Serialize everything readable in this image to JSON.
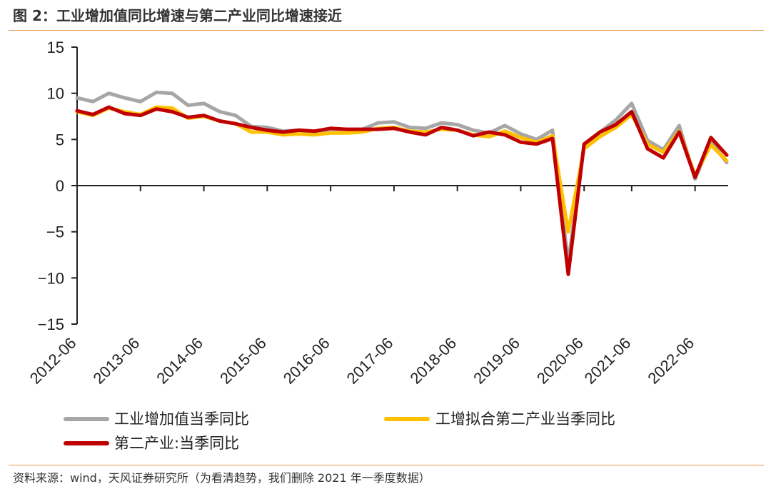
{
  "header": {
    "title": "图 2：工业增加值同比增速与第二产业同比增速接近"
  },
  "footer": {
    "source": "资料来源：wind，天风证券研究所（为看清趋势，我们删除 2021 年一季度数据）"
  },
  "colors": {
    "gray": "#a6a6a6",
    "yellow": "#ffc000",
    "red": "#c00000",
    "rule": "#e69a52"
  },
  "chart_data": {
    "type": "line",
    "title": "工业增加值同比增速与第二产业同比增速接近",
    "xlabel": "",
    "ylabel": "",
    "ylim": [
      -15,
      15
    ],
    "yticks": [
      15,
      10,
      5,
      0,
      -5,
      -10,
      -15
    ],
    "ytick_labels": [
      "15",
      "10",
      "5",
      "0",
      "−5",
      "−10",
      "−15"
    ],
    "x": [
      "2012-06",
      "2012-09",
      "2012-12",
      "2013-03",
      "2013-06",
      "2013-09",
      "2013-12",
      "2014-03",
      "2014-06",
      "2014-09",
      "2014-12",
      "2015-03",
      "2015-06",
      "2015-09",
      "2015-12",
      "2016-03",
      "2016-06",
      "2016-09",
      "2016-12",
      "2017-03",
      "2017-06",
      "2017-09",
      "2017-12",
      "2018-03",
      "2018-06",
      "2018-09",
      "2018-12",
      "2019-03",
      "2019-06",
      "2019-09",
      "2019-12",
      "2020-03",
      "2020-06",
      "2020-09",
      "2020-12",
      "2021-06",
      "2021-09",
      "2021-12",
      "2022-03",
      "2022-06",
      "2022-09",
      "2022-12"
    ],
    "xtick_labels": [
      "2012-06",
      "2013-06",
      "2014-06",
      "2015-06",
      "2016-06",
      "2017-06",
      "2018-06",
      "2019-06",
      "2020-06",
      "2021-06",
      "2022-06"
    ],
    "series": [
      {
        "name": "工业增加值当季同比",
        "values": [
          9.5,
          9.1,
          10.0,
          9.5,
          9.1,
          10.1,
          10.0,
          8.7,
          8.9,
          8.0,
          7.6,
          6.4,
          6.3,
          5.9,
          6.0,
          5.8,
          6.1,
          6.1,
          6.1,
          6.8,
          6.9,
          6.3,
          6.2,
          6.8,
          6.6,
          6.0,
          5.7,
          6.5,
          5.6,
          5.0,
          6.0,
          -8.4,
          4.4,
          5.8,
          7.1,
          8.9,
          4.9,
          3.9,
          6.5,
          0.7,
          4.8,
          2.5
        ]
      },
      {
        "name": "工增拟合第二产业当季同比",
        "values": [
          8.0,
          7.6,
          8.4,
          8.0,
          7.7,
          8.5,
          8.4,
          7.3,
          7.5,
          7.0,
          6.7,
          5.8,
          5.8,
          5.5,
          5.6,
          5.5,
          5.7,
          5.7,
          5.8,
          6.2,
          6.3,
          5.9,
          5.8,
          6.1,
          6.0,
          5.5,
          5.3,
          5.9,
          5.2,
          4.7,
          5.4,
          -5.0,
          4.0,
          5.3,
          6.3,
          7.7,
          4.5,
          3.6,
          5.9,
          1.1,
          4.4,
          2.7
        ]
      },
      {
        "name": "第二产业:当季同比",
        "values": [
          8.1,
          7.7,
          8.5,
          7.8,
          7.6,
          8.3,
          8.0,
          7.4,
          7.6,
          7.0,
          6.7,
          6.3,
          6.0,
          5.8,
          6.0,
          5.9,
          6.2,
          6.1,
          6.1,
          6.1,
          6.2,
          5.8,
          5.5,
          6.3,
          6.0,
          5.4,
          5.8,
          5.5,
          4.7,
          4.5,
          5.1,
          -9.6,
          4.5,
          5.8,
          6.6,
          8.0,
          4.0,
          3.0,
          5.8,
          0.9,
          5.2,
          3.3
        ]
      }
    ],
    "grid": false,
    "legend": "bottom"
  }
}
